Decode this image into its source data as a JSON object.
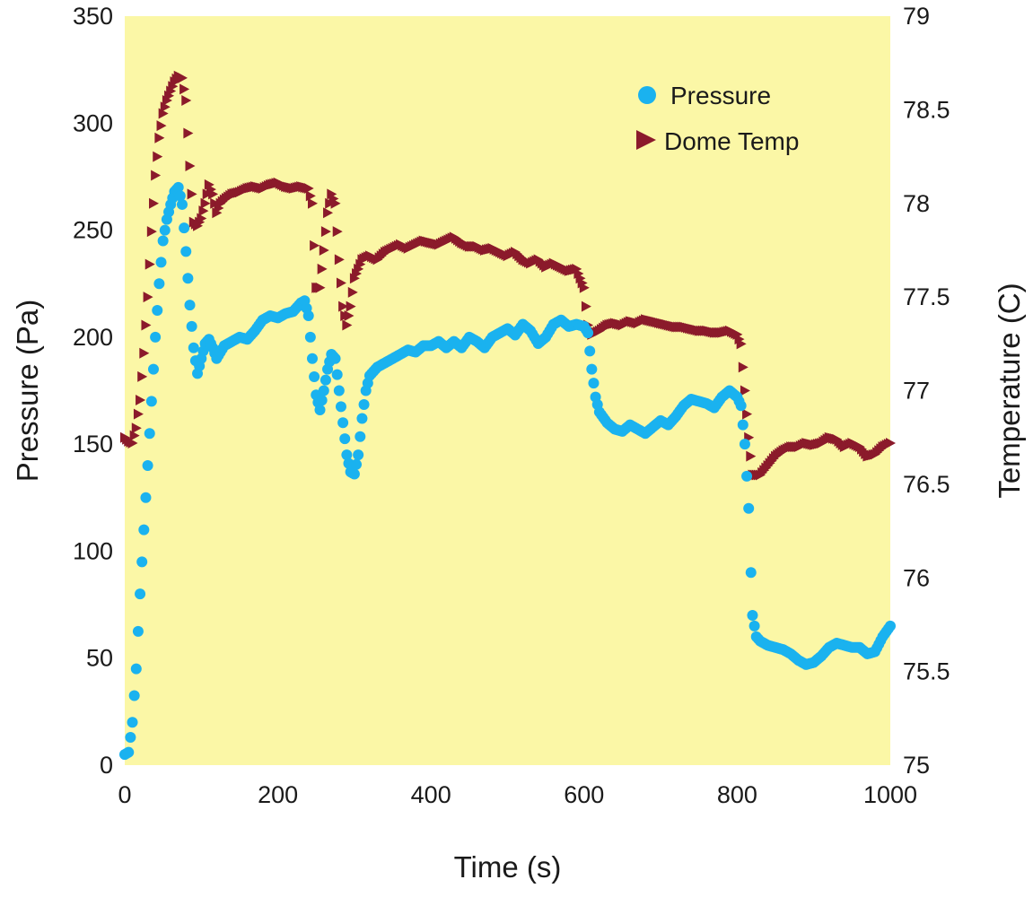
{
  "chart_data": {
    "type": "scatter",
    "title": "",
    "xlabel": "Time (s)",
    "ylabel": "Pressure (Pa)",
    "y2label": "Temperature (C)",
    "xlim": [
      0,
      1000
    ],
    "ylim": [
      0,
      350
    ],
    "y2lim": [
      75,
      79
    ],
    "xticks": [
      "0",
      "200",
      "400",
      "600",
      "800",
      "1000"
    ],
    "yticks": [
      "0",
      "50",
      "100",
      "150",
      "200",
      "250",
      "300",
      "350"
    ],
    "y2ticks": [
      "75",
      "75.5",
      "76",
      "76.5",
      "77",
      "77.5",
      "78",
      "78.5",
      "79"
    ],
    "grid": false,
    "legend_position": "top-right",
    "colors": {
      "plot_background": "#fbf7a6",
      "pressure": "#1ab2ef",
      "dome_temp": "#8b1a2b"
    },
    "series": [
      {
        "name": "Pressure",
        "axis": "left",
        "marker": "circle",
        "points": [
          [
            0,
            5
          ],
          [
            5,
            6
          ],
          [
            10,
            20
          ],
          [
            15,
            45
          ],
          [
            20,
            80
          ],
          [
            25,
            110
          ],
          [
            30,
            140
          ],
          [
            35,
            170
          ],
          [
            40,
            200
          ],
          [
            45,
            225
          ],
          [
            50,
            245
          ],
          [
            55,
            255
          ],
          [
            60,
            262
          ],
          [
            65,
            268
          ],
          [
            70,
            270
          ],
          [
            75,
            262
          ],
          [
            80,
            240
          ],
          [
            85,
            215
          ],
          [
            90,
            195
          ],
          [
            95,
            183
          ],
          [
            100,
            190
          ],
          [
            105,
            197
          ],
          [
            110,
            199
          ],
          [
            115,
            195
          ],
          [
            120,
            190
          ],
          [
            125,
            193
          ],
          [
            130,
            196
          ],
          [
            140,
            198
          ],
          [
            150,
            200
          ],
          [
            160,
            199
          ],
          [
            170,
            203
          ],
          [
            180,
            208
          ],
          [
            190,
            210
          ],
          [
            200,
            209
          ],
          [
            210,
            211
          ],
          [
            220,
            212
          ],
          [
            230,
            216
          ],
          [
            235,
            217
          ],
          [
            240,
            210
          ],
          [
            245,
            190
          ],
          [
            250,
            173
          ],
          [
            255,
            166
          ],
          [
            260,
            175
          ],
          [
            265,
            185
          ],
          [
            270,
            192
          ],
          [
            275,
            190
          ],
          [
            280,
            175
          ],
          [
            285,
            160
          ],
          [
            290,
            145
          ],
          [
            295,
            137
          ],
          [
            300,
            136
          ],
          [
            305,
            145
          ],
          [
            310,
            162
          ],
          [
            315,
            175
          ],
          [
            320,
            182
          ],
          [
            330,
            186
          ],
          [
            340,
            188
          ],
          [
            350,
            190
          ],
          [
            360,
            192
          ],
          [
            370,
            194
          ],
          [
            380,
            193
          ],
          [
            390,
            196
          ],
          [
            400,
            196
          ],
          [
            410,
            198
          ],
          [
            420,
            195
          ],
          [
            430,
            198
          ],
          [
            440,
            195
          ],
          [
            450,
            200
          ],
          [
            460,
            198
          ],
          [
            470,
            195
          ],
          [
            480,
            200
          ],
          [
            490,
            202
          ],
          [
            500,
            204
          ],
          [
            510,
            201
          ],
          [
            520,
            206
          ],
          [
            530,
            203
          ],
          [
            540,
            197
          ],
          [
            550,
            200
          ],
          [
            560,
            206
          ],
          [
            570,
            208
          ],
          [
            580,
            205
          ],
          [
            590,
            206
          ],
          [
            600,
            205
          ],
          [
            605,
            202
          ],
          [
            610,
            185
          ],
          [
            615,
            172
          ],
          [
            620,
            165
          ],
          [
            630,
            160
          ],
          [
            640,
            157
          ],
          [
            650,
            156
          ],
          [
            660,
            159
          ],
          [
            670,
            157
          ],
          [
            680,
            155
          ],
          [
            690,
            158
          ],
          [
            700,
            161
          ],
          [
            710,
            159
          ],
          [
            720,
            163
          ],
          [
            730,
            168
          ],
          [
            740,
            171
          ],
          [
            750,
            170
          ],
          [
            760,
            169
          ],
          [
            770,
            167
          ],
          [
            780,
            172
          ],
          [
            790,
            175
          ],
          [
            800,
            172
          ],
          [
            805,
            168
          ],
          [
            810,
            150
          ],
          [
            815,
            120
          ],
          [
            818,
            90
          ],
          [
            820,
            70
          ],
          [
            825,
            60
          ],
          [
            830,
            58
          ],
          [
            840,
            56
          ],
          [
            850,
            55
          ],
          [
            860,
            54
          ],
          [
            870,
            52
          ],
          [
            880,
            49
          ],
          [
            890,
            47
          ],
          [
            900,
            48
          ],
          [
            910,
            51
          ],
          [
            920,
            55
          ],
          [
            930,
            57
          ],
          [
            940,
            56
          ],
          [
            950,
            55
          ],
          [
            960,
            55
          ],
          [
            970,
            52
          ],
          [
            980,
            53
          ],
          [
            990,
            60
          ],
          [
            1000,
            65
          ]
        ]
      },
      {
        "name": "Dome Temp",
        "axis": "right",
        "marker": "triangle-right",
        "points": [
          [
            0,
            76.75
          ],
          [
            5,
            76.73
          ],
          [
            10,
            76.72
          ],
          [
            15,
            76.8
          ],
          [
            20,
            76.95
          ],
          [
            25,
            77.2
          ],
          [
            30,
            77.5
          ],
          [
            35,
            77.85
          ],
          [
            40,
            78.15
          ],
          [
            45,
            78.35
          ],
          [
            50,
            78.48
          ],
          [
            55,
            78.55
          ],
          [
            60,
            78.6
          ],
          [
            65,
            78.65
          ],
          [
            70,
            78.68
          ],
          [
            75,
            78.67
          ],
          [
            80,
            78.55
          ],
          [
            85,
            78.2
          ],
          [
            90,
            77.9
          ],
          [
            95,
            77.88
          ],
          [
            100,
            77.92
          ],
          [
            105,
            78.0
          ],
          [
            110,
            78.1
          ],
          [
            115,
            78.05
          ],
          [
            120,
            77.95
          ],
          [
            125,
            78.0
          ],
          [
            130,
            78.02
          ],
          [
            140,
            78.05
          ],
          [
            150,
            78.06
          ],
          [
            160,
            78.08
          ],
          [
            170,
            78.09
          ],
          [
            180,
            78.08
          ],
          [
            190,
            78.1
          ],
          [
            200,
            78.11
          ],
          [
            210,
            78.09
          ],
          [
            220,
            78.08
          ],
          [
            230,
            78.09
          ],
          [
            240,
            78.08
          ],
          [
            245,
            78.0
          ],
          [
            250,
            77.55
          ],
          [
            255,
            77.55
          ],
          [
            260,
            77.75
          ],
          [
            265,
            77.95
          ],
          [
            270,
            78.05
          ],
          [
            275,
            78.0
          ],
          [
            280,
            77.7
          ],
          [
            285,
            77.45
          ],
          [
            290,
            77.35
          ],
          [
            295,
            77.45
          ],
          [
            300,
            77.6
          ],
          [
            310,
            77.7
          ],
          [
            320,
            77.72
          ],
          [
            330,
            77.7
          ],
          [
            340,
            77.74
          ],
          [
            350,
            77.76
          ],
          [
            360,
            77.78
          ],
          [
            370,
            77.76
          ],
          [
            380,
            77.78
          ],
          [
            390,
            77.8
          ],
          [
            400,
            77.79
          ],
          [
            410,
            77.78
          ],
          [
            420,
            77.8
          ],
          [
            430,
            77.82
          ],
          [
            440,
            77.79
          ],
          [
            450,
            77.77
          ],
          [
            460,
            77.77
          ],
          [
            470,
            77.75
          ],
          [
            480,
            77.76
          ],
          [
            490,
            77.74
          ],
          [
            500,
            77.72
          ],
          [
            510,
            77.74
          ],
          [
            520,
            77.7
          ],
          [
            530,
            77.68
          ],
          [
            540,
            77.7
          ],
          [
            550,
            77.66
          ],
          [
            560,
            77.68
          ],
          [
            570,
            77.66
          ],
          [
            580,
            77.64
          ],
          [
            590,
            77.65
          ],
          [
            595,
            77.6
          ],
          [
            600,
            77.55
          ],
          [
            605,
            77.35
          ],
          [
            610,
            77.3
          ],
          [
            620,
            77.32
          ],
          [
            630,
            77.35
          ],
          [
            640,
            77.36
          ],
          [
            650,
            77.35
          ],
          [
            660,
            77.37
          ],
          [
            670,
            77.36
          ],
          [
            680,
            77.38
          ],
          [
            690,
            77.37
          ],
          [
            700,
            77.36
          ],
          [
            710,
            77.35
          ],
          [
            720,
            77.34
          ],
          [
            730,
            77.34
          ],
          [
            740,
            77.33
          ],
          [
            750,
            77.32
          ],
          [
            760,
            77.32
          ],
          [
            770,
            77.31
          ],
          [
            780,
            77.31
          ],
          [
            790,
            77.32
          ],
          [
            800,
            77.3
          ],
          [
            805,
            77.25
          ],
          [
            810,
            77.0
          ],
          [
            815,
            76.75
          ],
          [
            820,
            76.55
          ],
          [
            830,
            76.55
          ],
          [
            840,
            76.6
          ],
          [
            850,
            76.65
          ],
          [
            860,
            76.68
          ],
          [
            870,
            76.7
          ],
          [
            880,
            76.7
          ],
          [
            890,
            76.72
          ],
          [
            900,
            76.71
          ],
          [
            910,
            76.72
          ],
          [
            920,
            76.75
          ],
          [
            930,
            76.74
          ],
          [
            940,
            76.7
          ],
          [
            950,
            76.72
          ],
          [
            960,
            76.7
          ],
          [
            970,
            76.65
          ],
          [
            980,
            76.66
          ],
          [
            990,
            76.7
          ],
          [
            1000,
            76.72
          ]
        ]
      }
    ]
  }
}
